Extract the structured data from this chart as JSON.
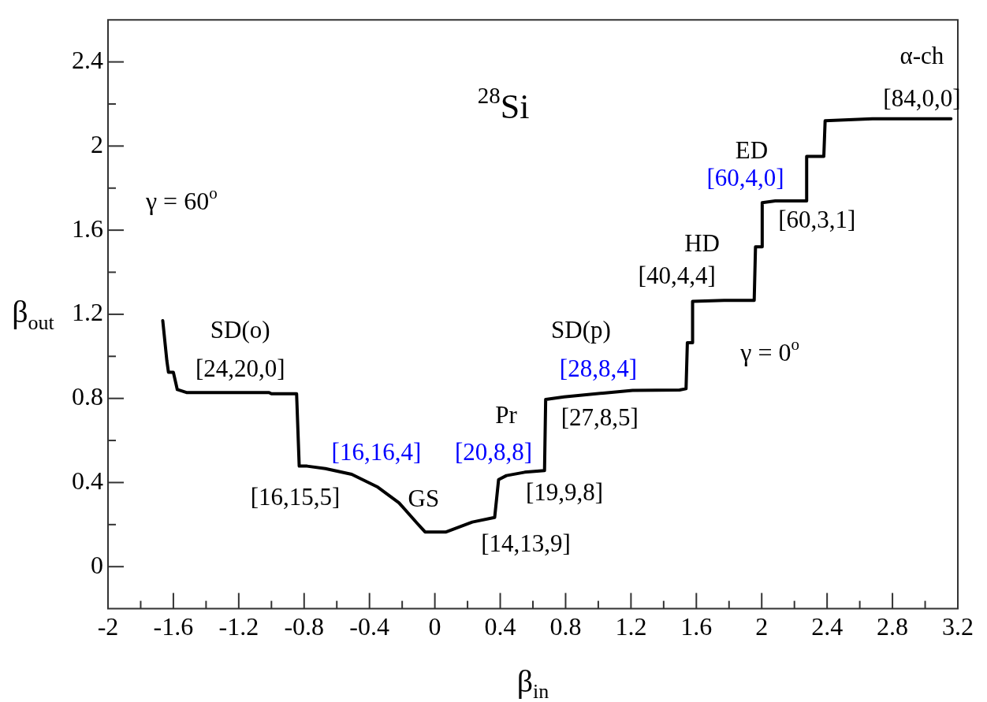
{
  "chart_data": {
    "type": "line",
    "xlabel": "β$_{in}$",
    "ylabel": "β$_{out}$",
    "x": [
      -1.665,
      -1.64,
      -1.63,
      -1.6,
      -1.576,
      -1.52,
      -1.015,
      -1.0,
      -0.846,
      -0.83,
      -0.782,
      -0.67,
      -0.509,
      -0.349,
      -0.22,
      -0.108,
      -0.06,
      0.069,
      0.229,
      0.366,
      0.39,
      0.438,
      0.55,
      0.671,
      0.678,
      0.79,
      1.03,
      1.21,
      1.497,
      1.537,
      1.545,
      1.577,
      1.577,
      1.77,
      1.954,
      1.962,
      2.003,
      2.003,
      2.083,
      2.275,
      2.275,
      2.38,
      2.388,
      2.677,
      3.158
    ],
    "series": [
      {
        "color": "#000000",
        "values": [
          1.17,
          0.98,
          0.924,
          0.924,
          0.842,
          0.828,
          0.828,
          0.822,
          0.822,
          0.478,
          0.478,
          0.466,
          0.439,
          0.378,
          0.304,
          0.206,
          0.165,
          0.165,
          0.212,
          0.234,
          0.414,
          0.433,
          0.449,
          0.457,
          0.795,
          0.807,
          0.825,
          0.838,
          0.84,
          0.846,
          1.065,
          1.065,
          1.261,
          1.266,
          1.266,
          1.521,
          1.521,
          1.731,
          1.739,
          1.739,
          1.951,
          1.951,
          2.12,
          2.13,
          2.13
        ]
      }
    ],
    "xlim": [
      -2,
      3.2
    ],
    "ylim": [
      -0.2,
      2.6
    ],
    "xticks": [
      -2,
      {
        "value": -1.8,
        "label": null
      },
      -1.6,
      {
        "value": -1.4,
        "label": null
      },
      -1.2,
      {
        "value": -1.0,
        "label": null
      },
      -0.8,
      {
        "value": -0.6,
        "label": null
      },
      -0.4,
      {
        "value": -0.2,
        "label": null
      },
      0,
      {
        "value": 0.2,
        "label": null
      },
      0.4,
      {
        "value": 0.6,
        "label": null
      },
      0.8,
      {
        "value": 1.0,
        "label": null
      },
      1.2,
      {
        "value": 1.4,
        "label": null
      },
      1.6,
      {
        "value": 1.8,
        "label": null
      },
      2,
      {
        "value": 2.2,
        "label": null
      },
      2.4,
      {
        "value": 2.6,
        "label": null
      },
      2.8,
      {
        "value": 3.0,
        "label": null
      },
      3.2
    ],
    "yticks": [
      0,
      {
        "value": 0.2,
        "label": null
      },
      0.4,
      {
        "value": 0.6,
        "label": null
      },
      0.8,
      {
        "value": 1.0,
        "label": null
      },
      1.2,
      {
        "value": 1.4,
        "label": null
      },
      1.6,
      {
        "value": 1.8,
        "label": null
      },
      2,
      {
        "value": 2.2,
        "label": null
      },
      2.4
    ],
    "grid": false,
    "legend": false,
    "marker": "none",
    "line_style": "solid",
    "annotations": [
      "$^{28}$Si",
      "γ = 60$^{o}$",
      "γ = 0$^{o}$",
      "SD(o)",
      "[24,20,0]",
      "[16,16,4]",
      "[16,15,5]",
      "GS",
      "[14,13,9]",
      "Pr",
      "[20,8,8]",
      "[19,9,8]",
      "SD(p)",
      "[28,8,4]",
      "[27,8,5]",
      "HD",
      "[40,4,4]",
      "ED",
      "[60,4,0]",
      "[60,3,1]",
      "α-ch",
      "[84,0,0]"
    ]
  }
}
